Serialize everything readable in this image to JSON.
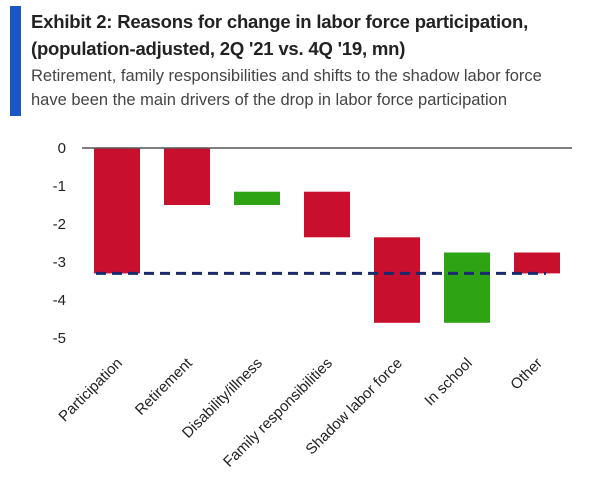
{
  "title_line1": "Exhibit 2: Reasons for change in labor force participation,",
  "title_line2": "(population-adjusted, 2Q '21 vs. 4Q '19, mn)",
  "subtitle_line1": "Retirement, family responsibilities and shifts to the shadow labor force",
  "subtitle_line2": "have been the main drivers of the drop in labor force participation",
  "colors": {
    "negative": "#c8102e",
    "positive": "#2ea314",
    "reference": "#1a2a6c",
    "accent": "#1a56c4",
    "axis": "#555555"
  },
  "chart_data": {
    "type": "bar",
    "subtype": "waterfall",
    "categories": [
      "Participation",
      "Retirement",
      "Disability/illness",
      "Family responsibilities",
      "Shadow labor force",
      "In school",
      "Other"
    ],
    "bars": [
      {
        "start": 0,
        "end": -3.3,
        "color": "negative"
      },
      {
        "start": 0,
        "end": -1.5,
        "color": "negative"
      },
      {
        "start": -1.5,
        "end": -1.15,
        "color": "positive"
      },
      {
        "start": -1.15,
        "end": -2.35,
        "color": "negative"
      },
      {
        "start": -2.35,
        "end": -4.6,
        "color": "negative"
      },
      {
        "start": -4.6,
        "end": -2.75,
        "color": "positive"
      },
      {
        "start": -2.75,
        "end": -3.3,
        "color": "negative"
      }
    ],
    "reference_line": -3.3,
    "ylim": [
      -5,
      0
    ],
    "yticks": [
      "0",
      "-1",
      "-2",
      "-3",
      "-4",
      "-5"
    ],
    "ytick_values": [
      0,
      -1,
      -2,
      -3,
      -4,
      -5
    ],
    "grid": false
  }
}
